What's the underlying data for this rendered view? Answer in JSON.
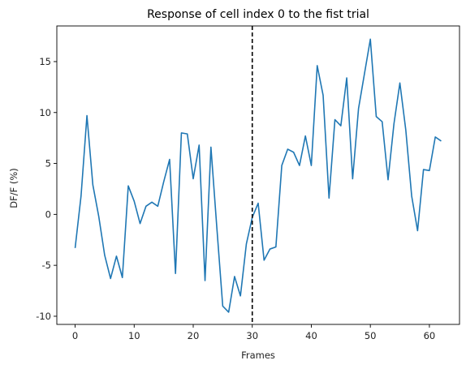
{
  "chart_data": {
    "type": "line",
    "title": "Response of cell index 0 to the fist trial",
    "xlabel": "Frames",
    "ylabel": "DF/F (%)",
    "xlim": [
      -3.1,
      65.1
    ],
    "ylim": [
      -10.8,
      18.5
    ],
    "x_ticks": [
      0,
      10,
      20,
      30,
      40,
      50,
      60
    ],
    "y_ticks": [
      -10,
      -5,
      0,
      5,
      10,
      15
    ],
    "grid": false,
    "line_color": "#1f77b4",
    "vline": {
      "x": 30,
      "style": "dashed",
      "color": "#000000"
    },
    "series": [
      {
        "x": [
          0,
          1,
          2,
          3,
          4,
          5,
          6,
          7,
          8,
          9,
          10,
          11,
          12,
          13,
          14,
          15,
          16,
          17,
          18,
          19,
          20,
          21,
          22,
          23,
          24,
          25,
          26,
          27,
          28,
          29,
          30,
          31,
          32,
          33,
          34,
          35,
          36,
          37,
          38,
          39,
          40,
          41,
          42,
          43,
          44,
          45,
          46,
          47,
          48,
          49,
          50,
          51,
          52,
          53,
          54,
          55,
          56,
          57,
          58,
          59,
          60,
          61,
          62
        ],
        "values": [
          -3.3,
          1.8,
          9.7,
          2.9,
          -0.2,
          -4.0,
          -6.3,
          -4.1,
          -6.2,
          2.8,
          1.3,
          -0.9,
          0.8,
          1.2,
          0.8,
          3.2,
          5.4,
          -5.8,
          8.0,
          7.9,
          3.5,
          6.8,
          -6.5,
          6.6,
          -1.3,
          -9.0,
          -9.6,
          -6.1,
          -8.0,
          -2.9,
          -0.3,
          1.1,
          -4.5,
          -3.4,
          -3.2,
          4.8,
          6.4,
          6.1,
          4.8,
          7.7,
          4.8,
          14.6,
          11.7,
          1.6,
          9.3,
          8.7,
          13.4,
          3.5,
          10.4,
          13.8,
          17.2,
          9.6,
          9.1,
          3.4,
          8.9,
          12.9,
          8.3,
          1.8,
          -1.6,
          4.4,
          4.3,
          7.6,
          7.2
        ]
      }
    ]
  }
}
